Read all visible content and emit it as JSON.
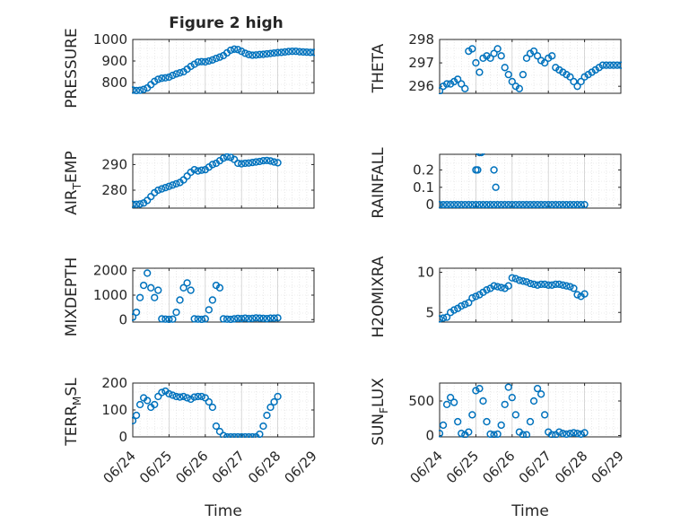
{
  "figure": {
    "title": "Figure 2 high"
  },
  "colors": {
    "marker": "#0072BD",
    "grid": "#d9d9d9",
    "axis": "#262626"
  },
  "chart_data": [
    {
      "type": "scatter",
      "id": "pressure",
      "title": "Figure 2 high",
      "ylabel": {
        "base": "PRESSURE"
      },
      "xlim": [
        0,
        5
      ],
      "ylim": [
        750,
        1000
      ],
      "yticks": [
        800,
        900,
        1000
      ],
      "yticklabels": [
        "800",
        "900",
        "1000"
      ],
      "show_xticklabels": false,
      "grid": true,
      "series": [
        {
          "x": [
            0.0,
            0.1,
            0.2,
            0.3,
            0.4,
            0.5,
            0.6,
            0.7,
            0.8,
            0.9,
            1.0,
            1.1,
            1.2,
            1.3,
            1.4,
            1.5,
            1.6,
            1.7,
            1.8,
            1.9,
            2.0,
            2.1,
            2.2,
            2.3,
            2.4,
            2.5,
            2.6,
            2.7,
            2.8,
            2.9,
            3.0,
            3.1,
            3.2,
            3.3,
            3.4,
            3.5,
            3.6,
            3.7,
            3.8,
            3.9,
            4.0,
            4.1,
            4.2,
            4.3,
            4.4,
            4.5,
            4.6,
            4.7,
            4.8,
            4.9,
            5.0
          ],
          "y": [
            765,
            763,
            764,
            768,
            775,
            790,
            805,
            815,
            820,
            822,
            825,
            833,
            840,
            845,
            850,
            862,
            875,
            885,
            895,
            897,
            896,
            900,
            905,
            912,
            918,
            925,
            938,
            950,
            955,
            953,
            945,
            936,
            930,
            927,
            928,
            930,
            931,
            933,
            935,
            937,
            939,
            940,
            942,
            944,
            945,
            945,
            943,
            942,
            941,
            940,
            940
          ]
        }
      ]
    },
    {
      "type": "scatter",
      "id": "theta",
      "ylabel": {
        "base": "THETA"
      },
      "xlim": [
        0,
        5
      ],
      "ylim": [
        295.7,
        298
      ],
      "yticks": [
        296,
        297,
        298
      ],
      "yticklabels": [
        "296",
        "297",
        "298"
      ],
      "show_xticklabels": false,
      "grid": true,
      "series": [
        {
          "x": [
            0.0,
            0.1,
            0.2,
            0.3,
            0.4,
            0.5,
            0.6,
            0.7,
            0.8,
            0.9,
            1.0,
            1.1,
            1.2,
            1.3,
            1.4,
            1.5,
            1.6,
            1.7,
            1.8,
            1.9,
            2.0,
            2.1,
            2.2,
            2.3,
            2.4,
            2.5,
            2.6,
            2.7,
            2.8,
            2.9,
            3.0,
            3.1,
            3.2,
            3.3,
            3.4,
            3.5,
            3.6,
            3.7,
            3.8,
            3.9,
            4.0,
            4.1,
            4.2,
            4.3,
            4.4,
            4.5,
            4.6,
            4.7,
            4.8,
            4.9,
            5.0
          ],
          "y": [
            295.8,
            296.0,
            296.1,
            296.1,
            296.2,
            296.3,
            296.1,
            295.9,
            297.5,
            297.6,
            297.0,
            296.6,
            297.2,
            297.3,
            297.2,
            297.4,
            297.6,
            297.3,
            296.8,
            296.5,
            296.2,
            296.0,
            295.9,
            296.5,
            297.2,
            297.4,
            297.5,
            297.3,
            297.1,
            297.0,
            297.2,
            297.3,
            296.8,
            296.7,
            296.6,
            296.5,
            296.4,
            296.2,
            296.0,
            296.2,
            296.4,
            296.5,
            296.6,
            296.7,
            296.8,
            296.9,
            296.9,
            296.9,
            296.9,
            296.9,
            296.9
          ]
        }
      ]
    },
    {
      "type": "scatter",
      "id": "air_temp",
      "ylabel": {
        "base": "AIR",
        "sub": "T",
        "tail": "EMP"
      },
      "xlim": [
        0,
        5
      ],
      "ylim": [
        273,
        294
      ],
      "yticks": [
        280,
        290
      ],
      "yticklabels": [
        "280",
        "290"
      ],
      "show_xticklabels": false,
      "grid": true,
      "series": [
        {
          "x": [
            0.0,
            0.1,
            0.2,
            0.3,
            0.4,
            0.5,
            0.6,
            0.7,
            0.8,
            0.9,
            1.0,
            1.1,
            1.2,
            1.3,
            1.4,
            1.5,
            1.6,
            1.7,
            1.8,
            1.9,
            2.0,
            2.1,
            2.2,
            2.3,
            2.4,
            2.5,
            2.6,
            2.7,
            2.8,
            2.9,
            3.0,
            3.1,
            3.2,
            3.3,
            3.4,
            3.5,
            3.6,
            3.7,
            3.8,
            3.9,
            4.0
          ],
          "y": [
            274.5,
            274.5,
            274.6,
            275.0,
            276.0,
            277.5,
            279.0,
            280.0,
            280.5,
            281.0,
            281.5,
            282.0,
            282.5,
            283.0,
            284.0,
            285.5,
            287.0,
            288.0,
            287.5,
            287.8,
            288.0,
            289.0,
            290.0,
            290.5,
            291.5,
            292.5,
            293.0,
            292.8,
            292.0,
            290.5,
            290.3,
            290.5,
            290.6,
            290.8,
            291.0,
            291.2,
            291.5,
            291.6,
            291.4,
            291.0,
            290.7
          ]
        }
      ]
    },
    {
      "type": "scatter",
      "id": "rainfall",
      "ylabel": {
        "base": "RAINFALL"
      },
      "xlim": [
        0,
        5
      ],
      "ylim": [
        -0.02,
        0.29
      ],
      "yticks": [
        0,
        0.1,
        0.2
      ],
      "yticklabels": [
        "0",
        "0.1",
        "0.2"
      ],
      "show_xticklabels": false,
      "grid": true,
      "series": [
        {
          "x": [
            0.0,
            0.1,
            0.2,
            0.3,
            0.4,
            0.5,
            0.6,
            0.7,
            0.8,
            0.9,
            1.0,
            1.1,
            1.2,
            1.3,
            1.4,
            1.5,
            1.6,
            1.7,
            1.8,
            1.9,
            2.0,
            2.1,
            2.2,
            2.3,
            2.4,
            2.5,
            2.6,
            2.7,
            2.8,
            2.9,
            3.0,
            3.1,
            3.2,
            3.3,
            3.4,
            3.5,
            3.6,
            3.7,
            3.8,
            3.9,
            4.0,
            1.0,
            1.05,
            1.1,
            1.15,
            1.5,
            1.55
          ],
          "y": [
            0,
            0,
            0,
            0,
            0,
            0,
            0,
            0,
            0,
            0,
            0,
            0,
            0,
            0,
            0,
            0,
            0,
            0,
            0,
            0,
            0,
            0,
            0,
            0,
            0,
            0,
            0,
            0,
            0,
            0,
            0,
            0,
            0,
            0,
            0,
            0,
            0,
            0,
            0,
            0,
            0,
            0.2,
            0.2,
            0.3,
            0.3,
            0.2,
            0.1
          ]
        }
      ]
    },
    {
      "type": "scatter",
      "id": "mixdepth",
      "ylabel": {
        "base": "MIXDEPTH"
      },
      "xlim": [
        0,
        5
      ],
      "ylim": [
        -100,
        2100
      ],
      "yticks": [
        0,
        1000,
        2000
      ],
      "yticklabels": [
        "0",
        "1000",
        "2000"
      ],
      "show_xticklabels": false,
      "grid": true,
      "series": [
        {
          "x": [
            0.0,
            0.1,
            0.2,
            0.3,
            0.4,
            0.5,
            0.6,
            0.7,
            0.8,
            0.9,
            1.0,
            1.1,
            1.2,
            1.3,
            1.4,
            1.5,
            1.6,
            1.7,
            1.8,
            1.9,
            2.0,
            2.1,
            2.2,
            2.3,
            2.4,
            2.5,
            2.6,
            2.7,
            2.8,
            2.9,
            3.0,
            3.1,
            3.2,
            3.3,
            3.4,
            3.5,
            3.6,
            3.7,
            3.8,
            3.9,
            4.0
          ],
          "y": [
            100,
            300,
            900,
            1400,
            1900,
            1300,
            900,
            1200,
            30,
            20,
            10,
            20,
            300,
            800,
            1300,
            1500,
            1200,
            30,
            20,
            10,
            30,
            400,
            800,
            1400,
            1300,
            30,
            20,
            10,
            30,
            50,
            40,
            60,
            40,
            50,
            70,
            60,
            50,
            40,
            60,
            60,
            70
          ]
        }
      ]
    },
    {
      "type": "scatter",
      "id": "h2omixra",
      "ylabel": {
        "base": "H2OMIXRA"
      },
      "xlim": [
        0,
        5
      ],
      "ylim": [
        3.8,
        10.5
      ],
      "yticks": [
        5,
        10
      ],
      "yticklabels": [
        "5",
        "10"
      ],
      "show_xticklabels": false,
      "grid": true,
      "series": [
        {
          "x": [
            0.0,
            0.1,
            0.2,
            0.3,
            0.4,
            0.5,
            0.6,
            0.7,
            0.8,
            0.9,
            1.0,
            1.1,
            1.2,
            1.3,
            1.4,
            1.5,
            1.6,
            1.7,
            1.8,
            1.9,
            2.0,
            2.1,
            2.2,
            2.3,
            2.4,
            2.5,
            2.6,
            2.7,
            2.8,
            2.9,
            3.0,
            3.1,
            3.2,
            3.3,
            3.4,
            3.5,
            3.6,
            3.7,
            3.8,
            3.9,
            4.0
          ],
          "y": [
            4.2,
            4.3,
            4.4,
            5.0,
            5.3,
            5.5,
            5.8,
            6.0,
            6.2,
            6.8,
            7.0,
            7.2,
            7.5,
            7.8,
            8.0,
            8.3,
            8.2,
            8.1,
            8.0,
            8.3,
            9.3,
            9.2,
            9.0,
            8.9,
            8.8,
            8.6,
            8.5,
            8.4,
            8.5,
            8.5,
            8.4,
            8.4,
            8.5,
            8.5,
            8.4,
            8.3,
            8.2,
            8.0,
            7.2,
            7.0,
            7.3
          ]
        }
      ]
    },
    {
      "type": "scatter",
      "id": "terr_msl",
      "ylabel": {
        "base": "TERR",
        "sub": "M",
        "tail": "SL"
      },
      "xlim": [
        0,
        5
      ],
      "ylim": [
        0,
        200
      ],
      "yticks": [
        0,
        100,
        200
      ],
      "yticklabels": [
        "0",
        "100",
        "200"
      ],
      "xticks": [
        0,
        1,
        2,
        3,
        4,
        5
      ],
      "xticklabels": [
        "06/24",
        "06/25",
        "06/26",
        "06/27",
        "06/28",
        "06/29"
      ],
      "xlabel": "Time",
      "show_xticklabels": true,
      "grid": true,
      "series": [
        {
          "x": [
            0.0,
            0.1,
            0.2,
            0.3,
            0.4,
            0.5,
            0.6,
            0.7,
            0.8,
            0.9,
            1.0,
            1.1,
            1.2,
            1.3,
            1.4,
            1.5,
            1.6,
            1.7,
            1.8,
            1.9,
            2.0,
            2.1,
            2.2,
            2.3,
            2.4,
            2.5,
            2.6,
            2.7,
            2.8,
            2.9,
            3.0,
            3.1,
            3.2,
            3.3,
            3.4,
            3.5,
            3.6,
            3.7,
            3.8,
            3.9,
            4.0
          ],
          "y": [
            60,
            80,
            120,
            145,
            135,
            110,
            120,
            150,
            165,
            170,
            160,
            155,
            150,
            148,
            150,
            145,
            140,
            148,
            150,
            150,
            145,
            130,
            110,
            40,
            20,
            5,
            0,
            0,
            0,
            0,
            0,
            0,
            0,
            0,
            0,
            10,
            40,
            80,
            110,
            130,
            150
          ]
        }
      ]
    },
    {
      "type": "scatter",
      "id": "sun_flux",
      "ylabel": {
        "base": "SUN",
        "sub": "F",
        "tail": "LUX"
      },
      "xlim": [
        0,
        5
      ],
      "ylim": [
        -20,
        760
      ],
      "yticks": [
        0,
        500
      ],
      "yticklabels": [
        "0",
        "500"
      ],
      "xticks": [
        0,
        1,
        2,
        3,
        4,
        5
      ],
      "xticklabels": [
        "06/24",
        "06/25",
        "06/26",
        "06/27",
        "06/28",
        "06/29"
      ],
      "xlabel": "Time",
      "show_xticklabels": true,
      "grid": true,
      "series": [
        {
          "x": [
            0.0,
            0.1,
            0.2,
            0.3,
            0.4,
            0.5,
            0.6,
            0.7,
            0.8,
            0.9,
            1.0,
            1.1,
            1.2,
            1.3,
            1.4,
            1.5,
            1.6,
            1.7,
            1.8,
            1.9,
            2.0,
            2.1,
            2.2,
            2.3,
            2.4,
            2.5,
            2.6,
            2.7,
            2.8,
            2.9,
            3.0,
            3.1,
            3.2,
            3.3,
            3.4,
            3.5,
            3.6,
            3.7,
            3.8,
            3.9,
            4.0
          ],
          "y": [
            30,
            150,
            450,
            550,
            480,
            200,
            30,
            10,
            50,
            300,
            650,
            680,
            500,
            200,
            20,
            10,
            20,
            150,
            450,
            700,
            550,
            300,
            50,
            10,
            10,
            200,
            500,
            680,
            600,
            300,
            50,
            10,
            10,
            50,
            30,
            20,
            30,
            40,
            30,
            20,
            40
          ]
        }
      ]
    }
  ]
}
